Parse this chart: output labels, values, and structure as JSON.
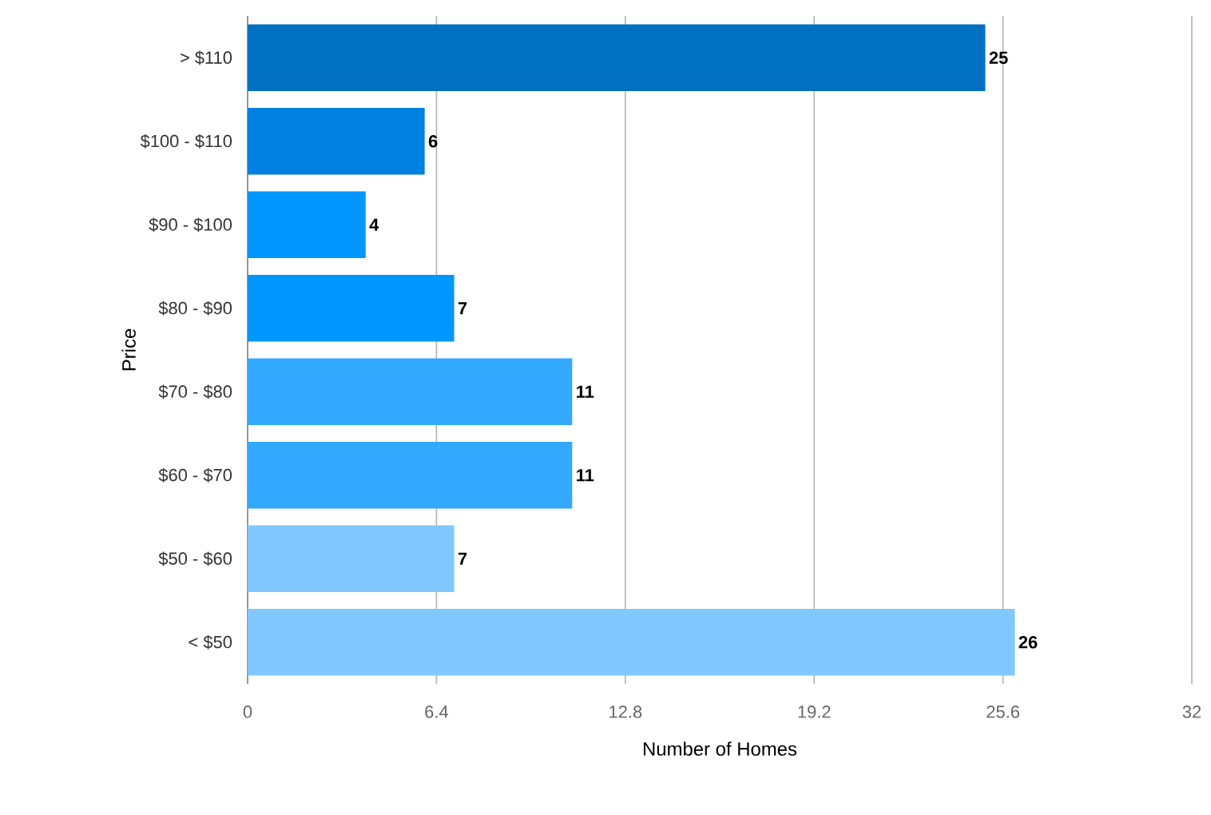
{
  "chart_data": {
    "type": "bar",
    "orientation": "horizontal",
    "xlabel": "Number of Homes",
    "ylabel": "Price",
    "categories": [
      "> $110",
      "$100 - $110",
      "$90 - $100",
      "$80 - $90",
      "$70 - $80",
      "$60 - $70",
      "$50 - $60",
      "< $50"
    ],
    "values": [
      25,
      6,
      4,
      7,
      11,
      11,
      7,
      26
    ],
    "colors": [
      "#0070c0",
      "#0080e0",
      "#0096ff",
      "#0096ff",
      "#33a8ff",
      "#33a8ff",
      "#80c8ff",
      "#80c8ff"
    ],
    "xlim": [
      0,
      32
    ],
    "xticks": [
      0,
      6.4,
      12.8,
      19.2,
      25.6,
      32
    ],
    "grid": "x",
    "data_labels": true
  }
}
